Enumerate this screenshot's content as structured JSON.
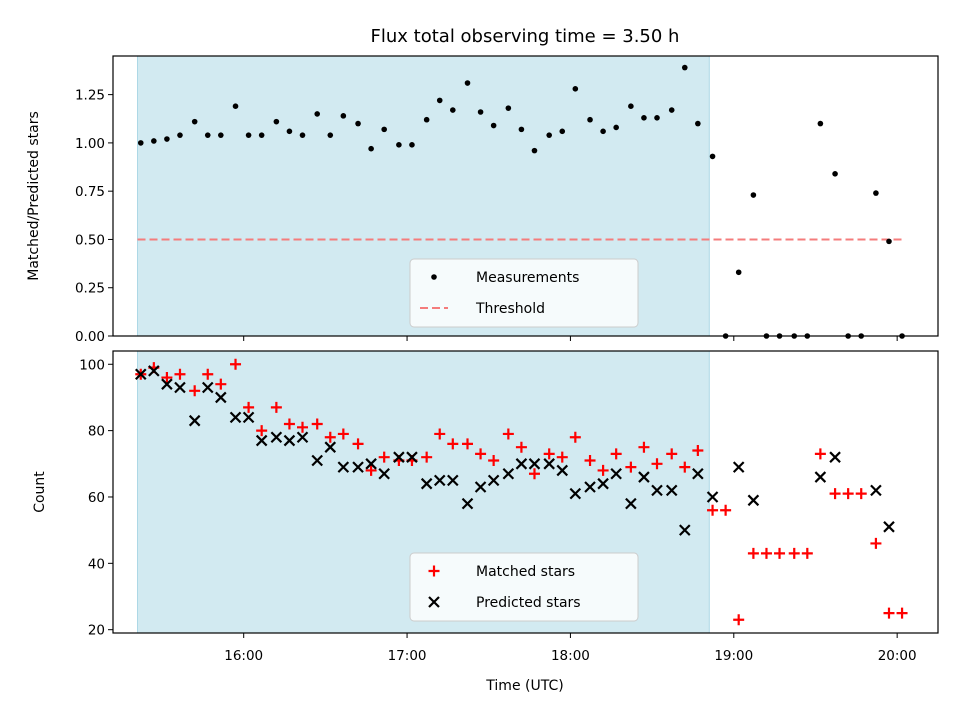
{
  "chart_data": {
    "title": "Flux total observing time = 3.50 h",
    "xlabel": "Time (UTC)",
    "x_unit": "hours UTC",
    "xlim": [
      15.2,
      20.25
    ],
    "x_ticks": [
      {
        "value": 16,
        "label": "16:00"
      },
      {
        "value": 17,
        "label": "17:00"
      },
      {
        "value": 18,
        "label": "18:00"
      },
      {
        "value": 19,
        "label": "19:00"
      },
      {
        "value": 20,
        "label": "20:00"
      }
    ],
    "shaded_span": {
      "x_start": 15.35,
      "x_end": 18.85,
      "color": "#add8e6"
    },
    "panels": [
      {
        "type": "scatter",
        "ylabel": "Matched/Predicted stars",
        "ylim": [
          0,
          1.45
        ],
        "y_ticks": [
          {
            "value": 0.0,
            "label": "0.00"
          },
          {
            "value": 0.25,
            "label": "0.25"
          },
          {
            "value": 0.5,
            "label": "0.50"
          },
          {
            "value": 0.75,
            "label": "0.75"
          },
          {
            "value": 1.0,
            "label": "1.00"
          },
          {
            "value": 1.25,
            "label": "1.25"
          }
        ],
        "threshold": {
          "value": 0.5,
          "x_start": 15.35,
          "x_end": 20.05
        },
        "legend": {
          "placement": "lower-center",
          "items": [
            {
              "label": "Measurements",
              "marker": "dot",
              "color": "#000000"
            },
            {
              "label": "Threshold",
              "marker": "dashed-line",
              "color": "#f47c7c"
            }
          ]
        },
        "series": [
          {
            "name": "Measurements",
            "marker": "dot",
            "color": "#000000",
            "points": [
              [
                15.37,
                1.0
              ],
              [
                15.45,
                1.01
              ],
              [
                15.53,
                1.02
              ],
              [
                15.61,
                1.04
              ],
              [
                15.7,
                1.11
              ],
              [
                15.78,
                1.04
              ],
              [
                15.86,
                1.04
              ],
              [
                15.95,
                1.19
              ],
              [
                16.03,
                1.04
              ],
              [
                16.11,
                1.04
              ],
              [
                16.2,
                1.11
              ],
              [
                16.28,
                1.06
              ],
              [
                16.36,
                1.04
              ],
              [
                16.45,
                1.15
              ],
              [
                16.53,
                1.04
              ],
              [
                16.61,
                1.14
              ],
              [
                16.7,
                1.1
              ],
              [
                16.78,
                0.97
              ],
              [
                16.86,
                1.07
              ],
              [
                16.95,
                0.99
              ],
              [
                17.03,
                0.99
              ],
              [
                17.12,
                1.12
              ],
              [
                17.2,
                1.22
              ],
              [
                17.28,
                1.17
              ],
              [
                17.37,
                1.31
              ],
              [
                17.45,
                1.16
              ],
              [
                17.53,
                1.09
              ],
              [
                17.62,
                1.18
              ],
              [
                17.7,
                1.07
              ],
              [
                17.78,
                0.96
              ],
              [
                17.87,
                1.04
              ],
              [
                17.95,
                1.06
              ],
              [
                18.03,
                1.28
              ],
              [
                18.12,
                1.12
              ],
              [
                18.2,
                1.06
              ],
              [
                18.28,
                1.08
              ],
              [
                18.37,
                1.19
              ],
              [
                18.45,
                1.13
              ],
              [
                18.53,
                1.13
              ],
              [
                18.62,
                1.17
              ],
              [
                18.7,
                1.39
              ],
              [
                18.78,
                1.1
              ],
              [
                18.87,
                0.93
              ],
              [
                18.95,
                0.0
              ],
              [
                19.03,
                0.33
              ],
              [
                19.12,
                0.73
              ],
              [
                19.2,
                0.0
              ],
              [
                19.28,
                0.0
              ],
              [
                19.37,
                0.0
              ],
              [
                19.45,
                0.0
              ],
              [
                19.53,
                1.1
              ],
              [
                19.62,
                0.84
              ],
              [
                19.7,
                0.0
              ],
              [
                19.78,
                0.0
              ],
              [
                19.87,
                0.74
              ],
              [
                19.95,
                0.49
              ],
              [
                20.03,
                0.0
              ]
            ]
          }
        ]
      },
      {
        "type": "scatter",
        "ylabel": "Count",
        "ylim": [
          19,
          104
        ],
        "y_ticks": [
          {
            "value": 20,
            "label": "20"
          },
          {
            "value": 40,
            "label": "40"
          },
          {
            "value": 60,
            "label": "60"
          },
          {
            "value": 80,
            "label": "80"
          },
          {
            "value": 100,
            "label": "100"
          }
        ],
        "legend": {
          "placement": "lower-center",
          "items": [
            {
              "label": "Matched stars",
              "marker": "plus",
              "color": "#ff0000"
            },
            {
              "label": "Predicted stars",
              "marker": "x",
              "color": "#000000"
            }
          ]
        },
        "series": [
          {
            "name": "Matched stars",
            "marker": "plus",
            "color": "#ff0000",
            "points": [
              [
                15.37,
                97
              ],
              [
                15.45,
                99
              ],
              [
                15.53,
                96
              ],
              [
                15.61,
                97
              ],
              [
                15.7,
                92
              ],
              [
                15.78,
                97
              ],
              [
                15.86,
                94
              ],
              [
                15.95,
                100
              ],
              [
                16.03,
                87
              ],
              [
                16.11,
                80
              ],
              [
                16.2,
                87
              ],
              [
                16.28,
                82
              ],
              [
                16.36,
                81
              ],
              [
                16.45,
                82
              ],
              [
                16.53,
                78
              ],
              [
                16.61,
                79
              ],
              [
                16.7,
                76
              ],
              [
                16.78,
                68
              ],
              [
                16.86,
                72
              ],
              [
                16.95,
                71
              ],
              [
                17.03,
                71
              ],
              [
                17.12,
                72
              ],
              [
                17.2,
                79
              ],
              [
                17.28,
                76
              ],
              [
                17.37,
                76
              ],
              [
                17.45,
                73
              ],
              [
                17.53,
                71
              ],
              [
                17.62,
                79
              ],
              [
                17.7,
                75
              ],
              [
                17.78,
                67
              ],
              [
                17.87,
                73
              ],
              [
                17.95,
                72
              ],
              [
                18.03,
                78
              ],
              [
                18.12,
                71
              ],
              [
                18.2,
                68
              ],
              [
                18.28,
                73
              ],
              [
                18.37,
                69
              ],
              [
                18.45,
                75
              ],
              [
                18.53,
                70
              ],
              [
                18.62,
                73
              ],
              [
                18.7,
                69
              ],
              [
                18.78,
                74
              ],
              [
                18.87,
                56
              ],
              [
                18.95,
                56
              ],
              [
                19.03,
                23
              ],
              [
                19.12,
                43
              ],
              [
                19.2,
                43
              ],
              [
                19.28,
                43
              ],
              [
                19.37,
                43
              ],
              [
                19.45,
                43
              ],
              [
                19.53,
                73
              ],
              [
                19.62,
                61
              ],
              [
                19.7,
                61
              ],
              [
                19.78,
                61
              ],
              [
                19.87,
                46
              ],
              [
                19.95,
                25
              ],
              [
                20.03,
                25
              ]
            ]
          },
          {
            "name": "Predicted stars",
            "marker": "x",
            "color": "#000000",
            "points": [
              [
                15.37,
                97
              ],
              [
                15.45,
                98
              ],
              [
                15.53,
                94
              ],
              [
                15.61,
                93
              ],
              [
                15.7,
                83
              ],
              [
                15.78,
                93
              ],
              [
                15.86,
                90
              ],
              [
                15.95,
                84
              ],
              [
                16.03,
                84
              ],
              [
                16.11,
                77
              ],
              [
                16.2,
                78
              ],
              [
                16.28,
                77
              ],
              [
                16.36,
                78
              ],
              [
                16.45,
                71
              ],
              [
                16.53,
                75
              ],
              [
                16.61,
                69
              ],
              [
                16.7,
                69
              ],
              [
                16.78,
                70
              ],
              [
                16.86,
                67
              ],
              [
                16.95,
                72
              ],
              [
                17.03,
                72
              ],
              [
                17.12,
                64
              ],
              [
                17.2,
                65
              ],
              [
                17.28,
                65
              ],
              [
                17.37,
                58
              ],
              [
                17.45,
                63
              ],
              [
                17.53,
                65
              ],
              [
                17.62,
                67
              ],
              [
                17.7,
                70
              ],
              [
                17.78,
                70
              ],
              [
                17.87,
                70
              ],
              [
                17.95,
                68
              ],
              [
                18.03,
                61
              ],
              [
                18.12,
                63
              ],
              [
                18.2,
                64
              ],
              [
                18.28,
                67
              ],
              [
                18.37,
                58
              ],
              [
                18.45,
                66
              ],
              [
                18.53,
                62
              ],
              [
                18.62,
                62
              ],
              [
                18.7,
                50
              ],
              [
                18.78,
                67
              ],
              [
                18.87,
                60
              ],
              [
                19.03,
                69
              ],
              [
                19.12,
                59
              ],
              [
                19.53,
                66
              ],
              [
                19.62,
                72
              ],
              [
                19.87,
                62
              ],
              [
                19.95,
                51
              ]
            ]
          }
        ]
      }
    ]
  }
}
